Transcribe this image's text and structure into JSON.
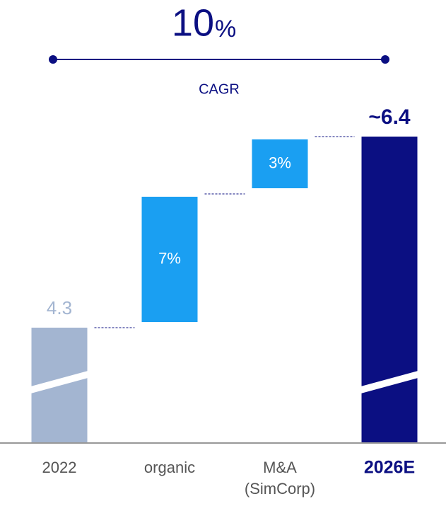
{
  "chart_data": {
    "type": "waterfall",
    "cagr": {
      "value": 10,
      "unit": "%",
      "label": "CAGR"
    },
    "categories": [
      "2022",
      "organic",
      [
        "M&A",
        "(SimCorp)"
      ],
      "2026E"
    ],
    "values": [
      4.3,
      7,
      3,
      6.4
    ],
    "value_labels": [
      "4.3",
      "7%",
      "3%",
      "~6.4"
    ],
    "kinds": [
      "total",
      "increment",
      "increment",
      "total"
    ],
    "colors": [
      "#a3b5d1",
      "#1a9ff2",
      "#1a9ff2",
      "#0b0f82"
    ],
    "axis_break": true
  }
}
